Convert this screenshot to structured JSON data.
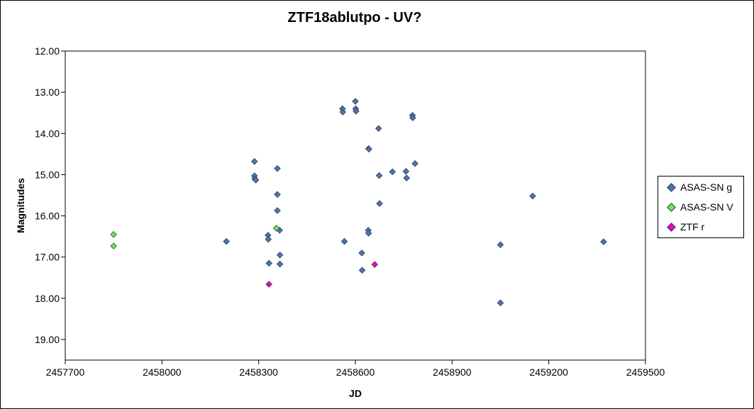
{
  "chart_data": {
    "type": "scatter",
    "title": "ZTF18ablutpo - UV?",
    "xlabel": "JD",
    "ylabel": "Magnitudes",
    "xlim": [
      2457700,
      2459500
    ],
    "ylim": [
      12.0,
      19.5
    ],
    "y_inverted": true,
    "x_ticks": [
      2457700,
      2458000,
      2458300,
      2458600,
      2458900,
      2459200,
      2459500
    ],
    "x_tick_labels": [
      "2457700",
      "2458000",
      "2458300",
      "2458600",
      "2458900",
      "2459200",
      "2459500"
    ],
    "y_ticks": [
      12,
      13,
      14,
      15,
      16,
      17,
      18,
      19
    ],
    "y_tick_labels": [
      "12.00",
      "13.00",
      "14.00",
      "15.00",
      "16.00",
      "17.00",
      "18.00",
      "19.00"
    ],
    "grid": false,
    "legend_position": "right",
    "series": [
      {
        "name": "ASAS-SN g",
        "color": "#4f73b0",
        "points": [
          [
            2458200,
            16.62
          ],
          [
            2458287,
            14.68
          ],
          [
            2458287,
            15.03
          ],
          [
            2458288,
            15.1
          ],
          [
            2458291,
            15.13
          ],
          [
            2458329,
            16.47
          ],
          [
            2458330,
            16.57
          ],
          [
            2458332,
            17.15
          ],
          [
            2458358,
            14.85
          ],
          [
            2458358,
            15.48
          ],
          [
            2458358,
            15.87
          ],
          [
            2458365,
            16.35
          ],
          [
            2458366,
            16.95
          ],
          [
            2458366,
            17.17
          ],
          [
            2458560,
            13.4
          ],
          [
            2458561,
            13.48
          ],
          [
            2458566,
            16.62
          ],
          [
            2458600,
            13.22
          ],
          [
            2458601,
            13.4
          ],
          [
            2458602,
            13.46
          ],
          [
            2458620,
            16.9
          ],
          [
            2458621,
            17.32
          ],
          [
            2458640,
            16.35
          ],
          [
            2458641,
            16.42
          ],
          [
            2458641,
            14.37
          ],
          [
            2458642,
            14.38
          ],
          [
            2458672,
            13.88
          ],
          [
            2458674,
            15.02
          ],
          [
            2458675,
            15.7
          ],
          [
            2458715,
            14.93
          ],
          [
            2458757,
            14.92
          ],
          [
            2458759,
            15.08
          ],
          [
            2458777,
            13.56
          ],
          [
            2458778,
            13.62
          ],
          [
            2458785,
            14.73
          ],
          [
            2459050,
            16.7
          ],
          [
            2459050,
            18.11
          ],
          [
            2459150,
            15.52
          ],
          [
            2459370,
            16.63
          ]
        ]
      },
      {
        "name": "ASAS-SN V",
        "color": "#66ee44",
        "points": [
          [
            2457850,
            16.45
          ],
          [
            2457850,
            16.73
          ],
          [
            2458355,
            16.3
          ]
        ]
      },
      {
        "name": "ZTF r",
        "color": "#ee00cc",
        "points": [
          [
            2458332,
            17.66
          ],
          [
            2458660,
            17.18
          ]
        ]
      }
    ]
  }
}
